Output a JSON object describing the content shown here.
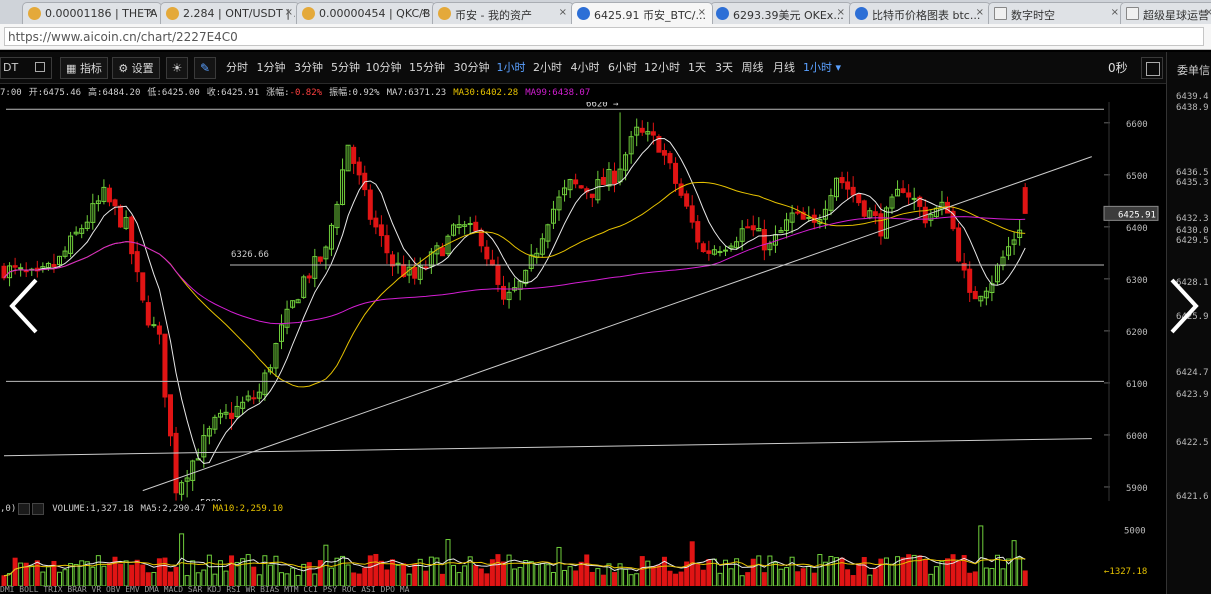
{
  "browser": {
    "tabs": [
      {
        "label": "0.00001186 | THETA/...",
        "icon": "coin-icon"
      },
      {
        "label": "2.284 | ONT/USDT | ...",
        "icon": "coin-icon"
      },
      {
        "label": "0.00000454 | QKC/B...",
        "icon": "coin-icon"
      },
      {
        "label": "币安 - 我的资产",
        "icon": "coin-icon"
      },
      {
        "label": "6425.91 币安_BTC/...",
        "icon": "coin-icon"
      },
      {
        "label": "6293.39美元 OKEx...",
        "icon": "coin-icon"
      },
      {
        "label": "比特币价格图表 btc...",
        "icon": "coin-icon"
      },
      {
        "label": "数字时空",
        "icon": "document-icon"
      },
      {
        "label": "超级星球运营",
        "icon": "document-icon"
      }
    ],
    "active_tab": 4,
    "url": "https://www.aicoin.cn/chart/2227E4C0"
  },
  "toolbar": {
    "symbol": "DT",
    "indicator_label": "指标",
    "settings_label": "设置",
    "timeframes": [
      "分时",
      "1分钟",
      "3分钟",
      "5分钟",
      "10分钟",
      "15分钟",
      "30分钟",
      "1小时",
      "2小时",
      "4小时",
      "6小时",
      "12小时",
      "1天",
      "3天",
      "周线",
      "月线"
    ],
    "active_timeframe": "1小时",
    "dropdown_label": "1小时",
    "countdown": "0秒"
  },
  "info": {
    "time": "7:00",
    "open": "开:6475.46",
    "high": "高:6484.20",
    "low": "低:6425.00",
    "close": "收:6425.91",
    "change_label": "涨幅:",
    "change_value": "-0.82%",
    "amplitude": "振幅:0.92%",
    "ma7": "MA7:6371.23",
    "ma30": "MA30:6402.28",
    "ma99": "MA99:6438.07"
  },
  "volume_info": {
    "prefix": ",0)",
    "volume": "VOLUME:1,327.18",
    "ma5": "MA5:2,290.47",
    "ma10": "MA10:2,259.10"
  },
  "bottom_labels": "DMI  BOLL  TRIX  BRAR  VR  OBV  EMV  DMA  MACD  SAR  KDJ  RSI  WR  BIAS  MTM  CCI  PSY  ROC  ASI  DPO  MA",
  "side_panel": {
    "title": "委单信",
    "prices": [
      "6439.4",
      "6438.9",
      "6436.5",
      "6435.3",
      "6432.3",
      "6430.0",
      "6429.5",
      "6428.1",
      "6425.9",
      "6424.7",
      "6423.9",
      "6422.5",
      "6421.6"
    ]
  },
  "chart_data": {
    "type": "candlestick",
    "y_ticks": [
      5900,
      6000,
      6100,
      6200,
      6300,
      6400,
      6500,
      6600
    ],
    "ylim": [
      5873,
      6640
    ],
    "last_price": "6425.91",
    "annotations": {
      "high_label": "6620",
      "high": 6620,
      "low_label": "5880",
      "low": 5880,
      "level_label": "6326.66",
      "level": 6326.66
    },
    "horizontal_levels": [
      6626,
      6326.66,
      6103
    ],
    "trendlines": [
      {
        "from": {
          "index": 25,
          "price": 5893
        },
        "to": {
          "index": 196,
          "price": 6535
        }
      },
      {
        "from": {
          "index": 0,
          "price": 5960
        },
        "to": {
          "index": 196,
          "price": 5993
        }
      }
    ],
    "close_path": [
      [
        0,
        6320
      ],
      [
        6,
        6300
      ],
      [
        10,
        6335
      ],
      [
        14,
        6400
      ],
      [
        18,
        6460
      ],
      [
        22,
        6400
      ],
      [
        25,
        6250
      ],
      [
        28,
        6180
      ],
      [
        31,
        5900
      ],
      [
        34,
        5950
      ],
      [
        38,
        6020
      ],
      [
        42,
        6050
      ],
      [
        46,
        6080
      ],
      [
        50,
        6200
      ],
      [
        54,
        6300
      ],
      [
        58,
        6350
      ],
      [
        62,
        6560
      ],
      [
        66,
        6420
      ],
      [
        70,
        6330
      ],
      [
        74,
        6300
      ],
      [
        78,
        6350
      ],
      [
        82,
        6400
      ],
      [
        86,
        6380
      ],
      [
        90,
        6250
      ],
      [
        94,
        6300
      ],
      [
        98,
        6420
      ],
      [
        102,
        6480
      ],
      [
        106,
        6470
      ],
      [
        110,
        6500
      ],
      [
        114,
        6580
      ],
      [
        118,
        6560
      ],
      [
        122,
        6460
      ],
      [
        126,
        6350
      ],
      [
        130,
        6370
      ],
      [
        134,
        6400
      ],
      [
        138,
        6360
      ],
      [
        142,
        6420
      ],
      [
        146,
        6400
      ],
      [
        150,
        6500
      ],
      [
        154,
        6450
      ],
      [
        158,
        6400
      ],
      [
        162,
        6480
      ],
      [
        166,
        6420
      ],
      [
        170,
        6440
      ],
      [
        174,
        6260
      ],
      [
        178,
        6300
      ],
      [
        182,
        6380
      ],
      [
        184,
        6426
      ]
    ],
    "high_index": 111,
    "low_index": 33,
    "volume": {
      "y_ticks": [
        5000
      ],
      "ylim": [
        0,
        6000
      ],
      "last_volume": "1327.18",
      "spikes": [
        [
          32,
          4600
        ],
        [
          58,
          3600
        ],
        [
          80,
          4100
        ],
        [
          100,
          3400
        ],
        [
          124,
          3900
        ],
        [
          176,
          5300
        ],
        [
          182,
          4000
        ]
      ]
    }
  }
}
